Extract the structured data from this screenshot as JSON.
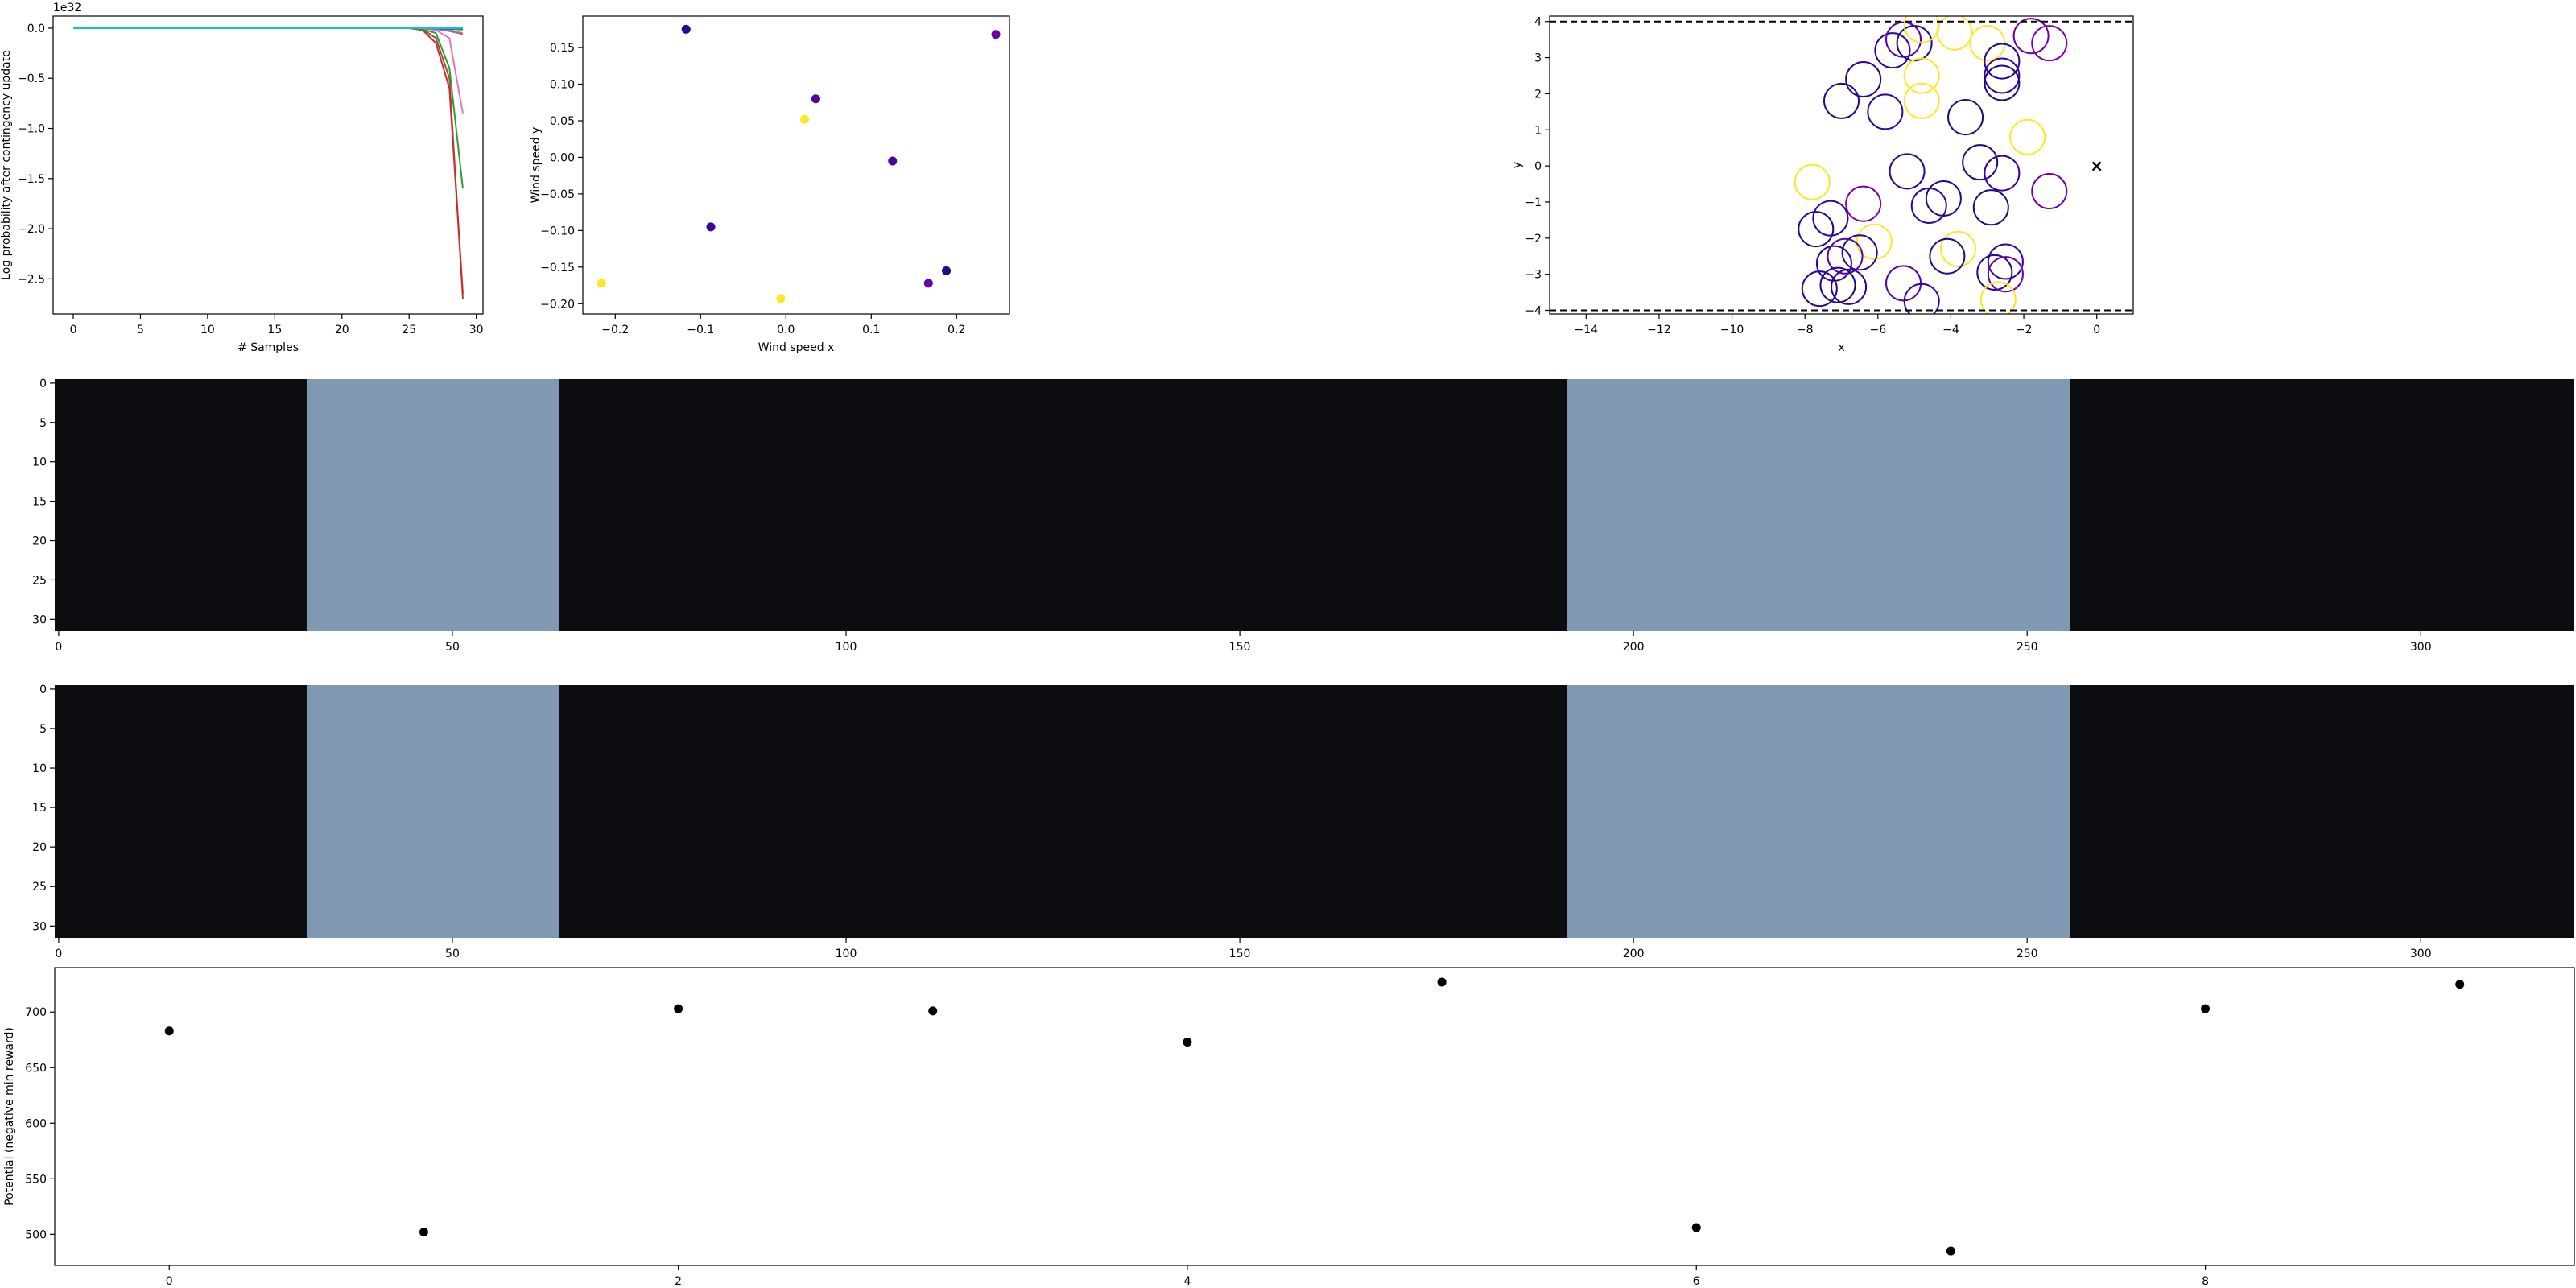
{
  "chart_data": [
    {
      "id": "logprob",
      "type": "line",
      "title": "",
      "xlabel": "# Samples",
      "ylabel": "Log probability after contingency update",
      "offset_text": "1e32",
      "xlim": [
        -1.5,
        30.5
      ],
      "ylim": [
        -2.85,
        0.12
      ],
      "xticks": [
        0,
        5,
        10,
        15,
        20,
        25,
        30
      ],
      "yticks": [
        0.0,
        -0.5,
        -1.0,
        -1.5,
        -2.0,
        -2.5
      ],
      "ytick_labels": [
        "0.0",
        "−0.5",
        "−1.0",
        "−1.5",
        "−2.0",
        "−2.5"
      ],
      "series": [
        {
          "color": "#8c564b",
          "x": [
            0,
            25,
            26,
            27,
            28,
            29
          ],
          "y": [
            0,
            0,
            -0.01,
            -0.1,
            -0.5,
            -2.7
          ]
        },
        {
          "color": "#d62728",
          "x": [
            0,
            25,
            26,
            27,
            28,
            29
          ],
          "y": [
            0,
            0,
            -0.02,
            -0.15,
            -0.6,
            -2.65
          ]
        },
        {
          "color": "#2ca02c",
          "x": [
            0,
            25,
            26,
            27,
            28,
            29
          ],
          "y": [
            0,
            0,
            -0.01,
            -0.05,
            -0.4,
            -1.6
          ]
        },
        {
          "color": "#e377c2",
          "x": [
            0,
            25,
            26,
            27,
            28,
            29
          ],
          "y": [
            0,
            0,
            0,
            -0.02,
            -0.1,
            -0.85
          ]
        },
        {
          "color": "#ff7f0e",
          "x": [
            0,
            26,
            27,
            28,
            29
          ],
          "y": [
            0,
            0,
            0,
            -0.02,
            -0.05
          ]
        },
        {
          "color": "#9467bd",
          "x": [
            0,
            26,
            27,
            28,
            29
          ],
          "y": [
            0,
            0,
            -0.01,
            -0.03,
            -0.06
          ]
        },
        {
          "color": "#bcbd22",
          "x": [
            0,
            27,
            28,
            29
          ],
          "y": [
            0,
            0,
            0,
            -0.02
          ]
        },
        {
          "color": "#1f77b4",
          "x": [
            0,
            27,
            28,
            29
          ],
          "y": [
            0,
            0,
            -0.01,
            -0.01
          ]
        },
        {
          "color": "#17becf",
          "x": [
            0,
            27,
            28,
            29
          ],
          "y": [
            0,
            0,
            0,
            0
          ]
        }
      ]
    },
    {
      "id": "wind",
      "type": "scatter",
      "title": "",
      "xlabel": "Wind speed x",
      "ylabel": "Wind speed y",
      "xlim": [
        -0.238,
        0.262
      ],
      "ylim": [
        -0.214,
        0.193
      ],
      "xticks": [
        -0.2,
        -0.1,
        0.0,
        0.1,
        0.2
      ],
      "xtick_labels": [
        "−0.2",
        "−0.1",
        "0.0",
        "0.1",
        "0.2"
      ],
      "yticks": [
        0.15,
        0.1,
        0.05,
        0.0,
        -0.05,
        -0.1,
        -0.15,
        -0.2
      ],
      "ytick_labels": [
        "0.15",
        "0.10",
        "0.05",
        "0.00",
        "−0.05",
        "−0.10",
        "−0.15",
        "−0.20"
      ],
      "points": [
        {
          "x": -0.117,
          "y": 0.175,
          "color": "#2c0594"
        },
        {
          "x": 0.246,
          "y": 0.168,
          "color": "#6a00a8"
        },
        {
          "x": 0.035,
          "y": 0.08,
          "color": "#5402a3"
        },
        {
          "x": 0.022,
          "y": 0.052,
          "color": "#fde725"
        },
        {
          "x": 0.125,
          "y": -0.005,
          "color": "#4903a0"
        },
        {
          "x": -0.088,
          "y": -0.095,
          "color": "#3a049a"
        },
        {
          "x": 0.188,
          "y": -0.155,
          "color": "#1f0c85"
        },
        {
          "x": 0.167,
          "y": -0.172,
          "color": "#6a00a8"
        },
        {
          "x": -0.216,
          "y": -0.172,
          "color": "#fde725"
        },
        {
          "x": -0.006,
          "y": -0.193,
          "color": "#fde725"
        }
      ]
    },
    {
      "id": "circles",
      "type": "scatter",
      "title": "",
      "xlabel": "x",
      "ylabel": "y",
      "xlim": [
        -15.0,
        1.0
      ],
      "ylim": [
        -4.1,
        4.15
      ],
      "xticks": [
        -14,
        -12,
        -10,
        -8,
        -6,
        -4,
        -2,
        0
      ],
      "xtick_labels": [
        "−14",
        "−12",
        "−10",
        "−8",
        "−6",
        "−4",
        "−2",
        "0"
      ],
      "yticks": [
        4,
        3,
        2,
        1,
        0,
        -1,
        -2,
        -3,
        -4
      ],
      "ytick_labels": [
        "4",
        "3",
        "2",
        "1",
        "0",
        "−1",
        "−2",
        "−3",
        "−4"
      ],
      "hlines": [
        4.0,
        -4.0
      ],
      "marker": {
        "x": 0,
        "y": 0,
        "symbol": "×"
      },
      "radius": 0.48,
      "circles": [
        {
          "x": -5.6,
          "y": 3.2,
          "c": "#2c0594"
        },
        {
          "x": -5.0,
          "y": 3.4,
          "c": "#1f0c85"
        },
        {
          "x": -5.3,
          "y": 3.5,
          "c": "#5a02a3"
        },
        {
          "x": -4.8,
          "y": 3.9,
          "c": "#fde725"
        },
        {
          "x": -3.9,
          "y": 3.7,
          "c": "#fde725"
        },
        {
          "x": -3.0,
          "y": 3.4,
          "c": "#fde725"
        },
        {
          "x": -1.8,
          "y": 3.6,
          "c": "#6a00a8"
        },
        {
          "x": -1.3,
          "y": 3.4,
          "c": "#7c02a8"
        },
        {
          "x": -2.6,
          "y": 2.9,
          "c": "#2c0594"
        },
        {
          "x": -2.6,
          "y": 2.5,
          "c": "#3a049a"
        },
        {
          "x": -2.6,
          "y": 2.3,
          "c": "#1f0c85"
        },
        {
          "x": -6.4,
          "y": 2.4,
          "c": "#2c0594"
        },
        {
          "x": -4.8,
          "y": 2.5,
          "c": "#fde725"
        },
        {
          "x": -4.8,
          "y": 1.8,
          "c": "#fde725"
        },
        {
          "x": -7.0,
          "y": 1.8,
          "c": "#1f0c85"
        },
        {
          "x": -5.8,
          "y": 1.5,
          "c": "#3a049a"
        },
        {
          "x": -3.6,
          "y": 1.35,
          "c": "#1f0c85"
        },
        {
          "x": -1.9,
          "y": 0.8,
          "c": "#fde725"
        },
        {
          "x": -3.2,
          "y": 0.1,
          "c": "#1f0c85"
        },
        {
          "x": -2.6,
          "y": -0.2,
          "c": "#3a049a"
        },
        {
          "x": -7.8,
          "y": -0.45,
          "c": "#fde725"
        },
        {
          "x": -5.2,
          "y": -0.15,
          "c": "#2c0594"
        },
        {
          "x": -1.3,
          "y": -0.7,
          "c": "#6a00a8"
        },
        {
          "x": -4.6,
          "y": -1.1,
          "c": "#2c0594"
        },
        {
          "x": -4.2,
          "y": -0.9,
          "c": "#1f0c85"
        },
        {
          "x": -6.4,
          "y": -1.05,
          "c": "#7c02a8"
        },
        {
          "x": -2.9,
          "y": -1.15,
          "c": "#1f0c85"
        },
        {
          "x": -7.3,
          "y": -1.45,
          "c": "#2c0594"
        },
        {
          "x": -7.7,
          "y": -1.75,
          "c": "#1f0c85"
        },
        {
          "x": -6.1,
          "y": -2.1,
          "c": "#fde725"
        },
        {
          "x": -6.5,
          "y": -2.4,
          "c": "#2c0594"
        },
        {
          "x": -3.8,
          "y": -2.3,
          "c": "#fde725"
        },
        {
          "x": -4.1,
          "y": -2.5,
          "c": "#1f0c85"
        },
        {
          "x": -7.2,
          "y": -2.7,
          "c": "#2c0594"
        },
        {
          "x": -6.9,
          "y": -2.5,
          "c": "#5402a3"
        },
        {
          "x": -2.5,
          "y": -2.65,
          "c": "#3a049a"
        },
        {
          "x": -2.8,
          "y": -2.95,
          "c": "#1f0c85"
        },
        {
          "x": -2.5,
          "y": -3.0,
          "c": "#6a00a8"
        },
        {
          "x": -7.6,
          "y": -3.4,
          "c": "#2c0594"
        },
        {
          "x": -7.1,
          "y": -3.3,
          "c": "#1f0c85"
        },
        {
          "x": -6.8,
          "y": -3.35,
          "c": "#2c0594"
        },
        {
          "x": -5.3,
          "y": -3.25,
          "c": "#5402a3"
        },
        {
          "x": -4.8,
          "y": -3.75,
          "c": "#3a049a"
        },
        {
          "x": -2.7,
          "y": -3.7,
          "c": "#fde725"
        }
      ]
    },
    {
      "id": "img1",
      "type": "heatmap",
      "title": "",
      "xlim": [
        -0.5,
        319.5
      ],
      "ylim": [
        31.5,
        -0.5
      ],
      "xticks": [
        0,
        50,
        100,
        150,
        200,
        250,
        300
      ],
      "yticks": [
        0,
        5,
        10,
        15,
        20,
        25,
        30
      ],
      "bands": [
        {
          "x0": 0,
          "x1": 32,
          "c": "#0b0d10"
        },
        {
          "x0": 32,
          "x1": 64,
          "c": "#7f99b2"
        },
        {
          "x0": 64,
          "x1": 192,
          "c": "#0b0d10"
        },
        {
          "x0": 192,
          "x1": 256,
          "c": "#7f99b2"
        },
        {
          "x0": 256,
          "x1": 320,
          "c": "#0b0d10"
        }
      ]
    },
    {
      "id": "img2",
      "type": "heatmap",
      "title": "",
      "xlim": [
        -0.5,
        319.5
      ],
      "ylim": [
        31.5,
        -0.5
      ],
      "xticks": [
        0,
        50,
        100,
        150,
        200,
        250,
        300
      ],
      "yticks": [
        0,
        5,
        10,
        15,
        20,
        25,
        30
      ],
      "bands": [
        {
          "x0": 0,
          "x1": 32,
          "c": "#0b0d10"
        },
        {
          "x0": 32,
          "x1": 64,
          "c": "#7f99b2"
        },
        {
          "x0": 64,
          "x1": 192,
          "c": "#0b0d10"
        },
        {
          "x0": 192,
          "x1": 256,
          "c": "#7f99b2"
        },
        {
          "x0": 256,
          "x1": 320,
          "c": "#0b0d10"
        }
      ]
    },
    {
      "id": "potential",
      "type": "scatter",
      "title": "",
      "xlabel": "",
      "ylabel": "Potential (negative min reward)",
      "xlim": [
        -0.45,
        9.45
      ],
      "ylim": [
        472,
        740
      ],
      "xticks": [
        0,
        2,
        4,
        6,
        8
      ],
      "yticks": [
        700,
        650,
        600,
        550,
        500
      ],
      "points": [
        {
          "x": 0,
          "y": 683
        },
        {
          "x": 1,
          "y": 502
        },
        {
          "x": 2,
          "y": 703
        },
        {
          "x": 3,
          "y": 701
        },
        {
          "x": 4,
          "y": 673
        },
        {
          "x": 5,
          "y": 727
        },
        {
          "x": 6,
          "y": 506
        },
        {
          "x": 7,
          "y": 485
        },
        {
          "x": 8,
          "y": 703
        },
        {
          "x": 9,
          "y": 725
        }
      ]
    }
  ]
}
